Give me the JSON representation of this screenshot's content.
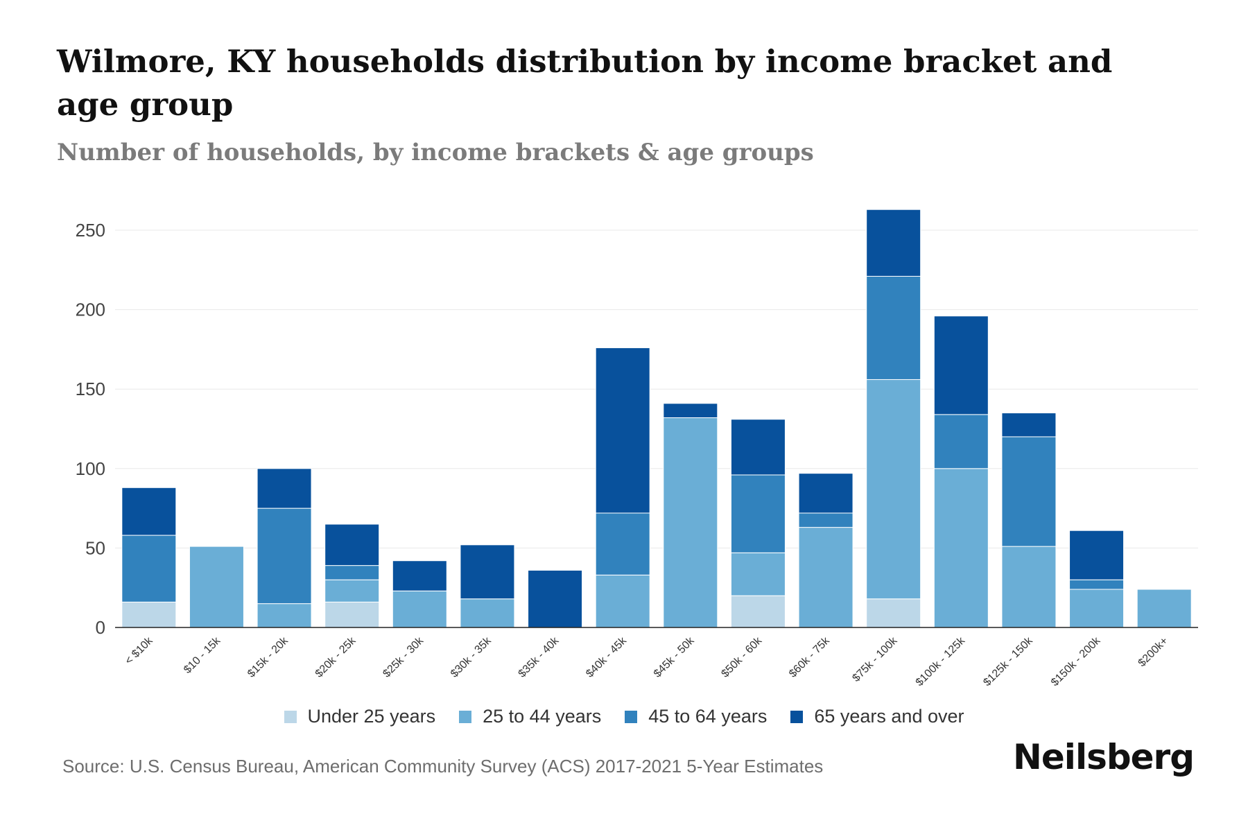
{
  "chart_data": {
    "type": "bar",
    "stacked": true,
    "title": "Wilmore, KY households distribution by income bracket and age group",
    "subtitle": "Number of households, by income brackets & age groups",
    "categories": [
      "< $10k",
      "$10 - 15k",
      "$15k - 20k",
      "$20k - 25k",
      "$25k - 30k",
      "$30k - 35k",
      "$35k - 40k",
      "$40k - 45k",
      "$45k - 50k",
      "$50k - 60k",
      "$60k - 75k",
      "$75k - 100k",
      "$100k - 125k",
      "$125k - 150k",
      "$150k - 200k",
      "$200k+"
    ],
    "series": [
      {
        "name": "Under 25 years",
        "color": "#bcd7e8",
        "values": [
          16,
          0,
          0,
          16,
          0,
          0,
          0,
          0,
          0,
          20,
          0,
          18,
          0,
          0,
          0,
          0
        ]
      },
      {
        "name": "25 to 44 years",
        "color": "#6aaed6",
        "values": [
          0,
          51,
          15,
          14,
          23,
          18,
          0,
          33,
          132,
          27,
          63,
          138,
          100,
          51,
          24,
          24
        ]
      },
      {
        "name": "45 to 64 years",
        "color": "#3182bd",
        "values": [
          42,
          0,
          60,
          9,
          0,
          0,
          0,
          39,
          0,
          49,
          9,
          65,
          34,
          69,
          6,
          0
        ]
      },
      {
        "name": "65 years and over",
        "color": "#08519c",
        "values": [
          30,
          0,
          25,
          26,
          19,
          34,
          36,
          104,
          9,
          35,
          25,
          42,
          62,
          15,
          31,
          0
        ]
      }
    ],
    "yticks": [
      0,
      50,
      100,
      150,
      200,
      250
    ],
    "ylim": [
      0,
      275
    ],
    "xlabel": "",
    "ylabel": "",
    "grid": true,
    "legend": "bottom-center"
  },
  "footer": {
    "source": "Source: U.S. Census Bureau, American Community Survey (ACS) 2017-2021 5-Year Estimates",
    "brand": "Neilsberg"
  }
}
